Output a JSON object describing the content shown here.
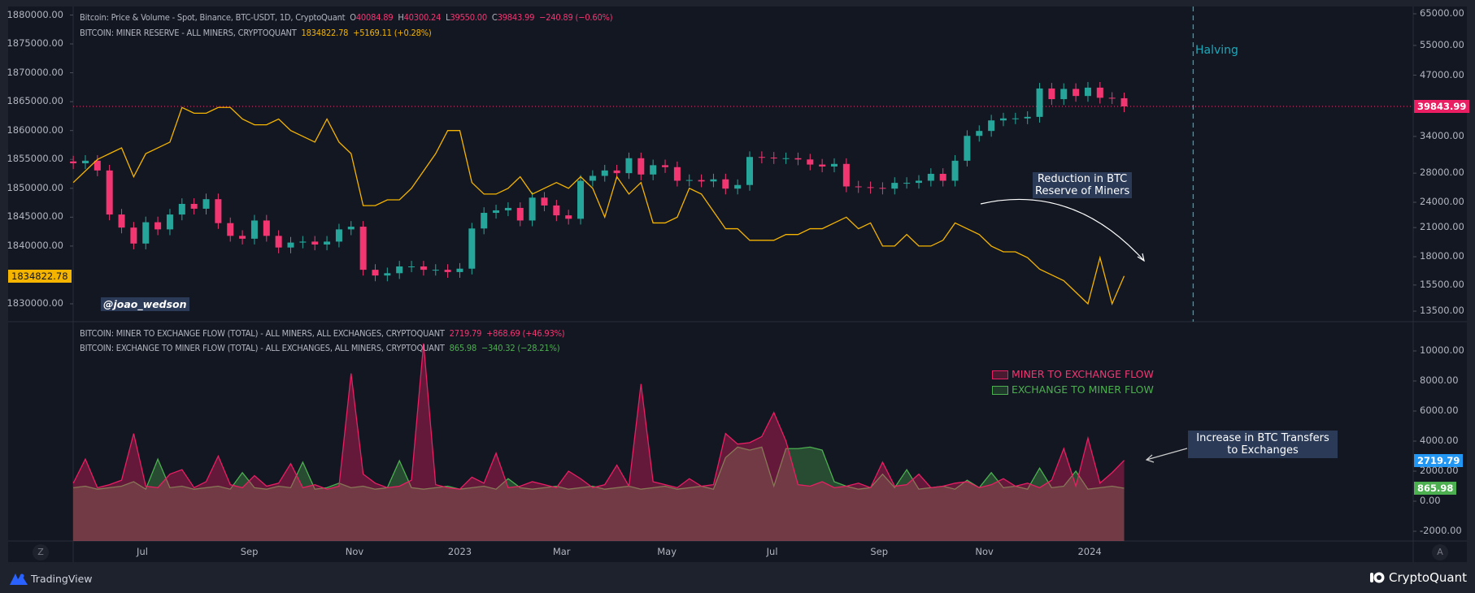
{
  "legend_top": {
    "price_title": "Bitcoin: Price & Volume - Spot, Binance, BTC-USDT, 1D, CryptoQuant",
    "o_label": "O",
    "o": "40084.89",
    "h_label": "H",
    "h": "40300.24",
    "l_label": "L",
    "l": "39550.00",
    "c_label": "C",
    "c": "39843.99",
    "change": "−240.89 (−0.60%)",
    "reserve_title": "BITCOIN: MINER RESERVE - ALL MINERS, CRYPTOQUANT",
    "reserve_value": "1834822.78",
    "reserve_change": "+5169.11 (+0.28%)"
  },
  "legend_bottom": {
    "m2e_title": "BITCOIN: MINER TO EXCHANGE FLOW (TOTAL) - ALL MINERS, ALL EXCHANGES, CRYPTOQUANT",
    "m2e_value": "2719.79",
    "m2e_change": "+868.69 (+46.93%)",
    "e2m_title": "BITCOIN: EXCHANGE TO MINER FLOW (TOTAL) - ALL EXCHANGES, ALL MINERS, CRYPTOQUANT",
    "e2m_value": "865.98",
    "e2m_change": "−340.32 (−28.21%)"
  },
  "annotations": {
    "halving": "Halving",
    "reduction": [
      "Reduction in BTC",
      "Reserve of Miners"
    ],
    "increase": [
      "Increase in BTC Transfers",
      "to Exchanges"
    ],
    "watermark": "@joao_wedson",
    "legend_m2e": "MINER TO EXCHANGE FLOW",
    "legend_e2m": "EXCHANGE TO MINER FLOW"
  },
  "last_values": {
    "price": "39843.99",
    "reserve": "1834822.78",
    "m2e": "2719.79",
    "e2m": "865.98"
  },
  "axes": {
    "left_ticks": [
      "1880000.00",
      "1875000.00",
      "1870000.00",
      "1865000.00",
      "1860000.00",
      "1855000.00",
      "1850000.00",
      "1845000.00",
      "1840000.00",
      "1830000.00"
    ],
    "right_top_ticks": [
      "65000.00",
      "55000.00",
      "47000.00",
      "34000.00",
      "28000.00",
      "24000.00",
      "21000.00",
      "18000.00",
      "15500.00",
      "13500.00"
    ],
    "right_bottom_ticks": [
      "10000.00",
      "8000.00",
      "6000.00",
      "4000.00",
      "2000.00",
      "0.00",
      "-2000.00"
    ],
    "time_ticks": [
      {
        "label": "Jul",
        "date": "2022-07-01"
      },
      {
        "label": "Sep",
        "date": "2022-09-01"
      },
      {
        "label": "Nov",
        "date": "2022-11-01"
      },
      {
        "label": "2023",
        "date": "2023-01-01"
      },
      {
        "label": "Mar",
        "date": "2023-03-01"
      },
      {
        "label": "May",
        "date": "2023-05-01"
      },
      {
        "label": "Jul",
        "date": "2023-07-01"
      },
      {
        "label": "Sep",
        "date": "2023-09-01"
      },
      {
        "label": "Nov",
        "date": "2023-11-01"
      },
      {
        "label": "2024",
        "date": "2024-01-01"
      }
    ],
    "z_button": "Z",
    "a_button": "A"
  },
  "footer": {
    "left_brand": "TradingView",
    "right_brand": "CryptoQuant"
  },
  "colors": {
    "up": "#26a69a",
    "down": "#f23672",
    "reserve": "#f5b400",
    "m2e": "#e91e63",
    "e2m": "#4caf50",
    "halving": "#1fa7b8",
    "price_tag": "#e91e63",
    "m2e_tag": "#2196f3",
    "e2m_tag": "#4caf50"
  },
  "chart_data": {
    "type": "candlestick+line+area",
    "sampling": "weekly",
    "start_date": "2022-05-22",
    "halving_date": "2024-03-01",
    "price_scale": "log",
    "price_close": [
      29500,
      29900,
      28400,
      22500,
      21000,
      19300,
      21600,
      20800,
      22500,
      23800,
      23200,
      24400,
      21500,
      20100,
      19800,
      21800,
      20100,
      18900,
      19400,
      19500,
      19200,
      19500,
      20800,
      21100,
      16800,
      16300,
      16500,
      17100,
      17100,
      16800,
      16800,
      16600,
      16900,
      20900,
      22700,
      23000,
      23300,
      21800,
      24600,
      23600,
      22400,
      22000,
      26900,
      27600,
      28400,
      28000,
      30300,
      27800,
      29200,
      28900,
      26900,
      27000,
      26800,
      27100,
      25800,
      26300,
      30500,
      30400,
      30300,
      30300,
      30100,
      29300,
      29000,
      29400,
      26100,
      26000,
      25900,
      25800,
      26600,
      26600,
      26900,
      27900,
      26900,
      29900,
      34100,
      35000,
      37000,
      37400,
      37400,
      37700,
      43800,
      41400,
      43700,
      42100,
      44000,
      41700,
      41600,
      39843.99
    ],
    "miner_reserve": [
      1851000,
      1853000,
      1855000,
      1856000,
      1857000,
      1852000,
      1856000,
      1857000,
      1858000,
      1864000,
      1863000,
      1863000,
      1864000,
      1864000,
      1862000,
      1861000,
      1861000,
      1862000,
      1860000,
      1859000,
      1858000,
      1862000,
      1858000,
      1856000,
      1847000,
      1847000,
      1848000,
      1848000,
      1850000,
      1853000,
      1856000,
      1860000,
      1860000,
      1851000,
      1849000,
      1849000,
      1850000,
      1852000,
      1849000,
      1850000,
      1851000,
      1850000,
      1852000,
      1850000,
      1845000,
      1852000,
      1849000,
      1851000,
      1844000,
      1844000,
      1845000,
      1850000,
      1849000,
      1846000,
      1843000,
      1843000,
      1841000,
      1841000,
      1841000,
      1842000,
      1842000,
      1843000,
      1843000,
      1844000,
      1845000,
      1843000,
      1844000,
      1840000,
      1840000,
      1842000,
      1840000,
      1840000,
      1841000,
      1844000,
      1843000,
      1842000,
      1840000,
      1839000,
      1839000,
      1838000,
      1836000,
      1835000,
      1834000,
      1832000,
      1830000,
      1838000,
      1830000,
      1834822.78
    ],
    "miner_to_exchange_flow": [
      1200,
      2800,
      900,
      1100,
      1400,
      4500,
      1000,
      900,
      1800,
      2100,
      900,
      1300,
      3000,
      1100,
      900,
      1700,
      1000,
      1200,
      2500,
      900,
      1100,
      800,
      1000,
      8500,
      1800,
      1200,
      900,
      1000,
      1400,
      10500,
      1100,
      900,
      800,
      1600,
      1200,
      3200,
      900,
      1000,
      1300,
      1100,
      900,
      2000,
      1500,
      900,
      1100,
      2400,
      1000,
      7800,
      1300,
      1100,
      900,
      1500,
      1000,
      1100,
      4500,
      3800,
      3900,
      4300,
      5900,
      4000,
      1100,
      1000,
      1300,
      900,
      1000,
      1200,
      900,
      2600,
      1000,
      1100,
      1800,
      900,
      1000,
      1200,
      1300,
      900,
      1100,
      1500,
      1000,
      1200,
      900,
      1400,
      3500,
      1000,
      4200,
      1200,
      1900,
      2719.79
    ],
    "exchange_to_miner_flow": [
      900,
      1000,
      800,
      900,
      1000,
      1300,
      800,
      2800,
      900,
      1000,
      800,
      900,
      1000,
      800,
      1900,
      900,
      800,
      1000,
      900,
      2600,
      800,
      900,
      1200,
      900,
      1000,
      800,
      900,
      2700,
      900,
      800,
      900,
      1000,
      800,
      900,
      1000,
      800,
      1500,
      900,
      800,
      900,
      1000,
      800,
      900,
      1000,
      800,
      900,
      1000,
      800,
      900,
      1000,
      800,
      900,
      1000,
      800,
      2900,
      3600,
      3400,
      3600,
      1000,
      3500,
      3500,
      3600,
      3400,
      1300,
      1000,
      800,
      900,
      1800,
      900,
      2100,
      800,
      900,
      1000,
      800,
      1400,
      900,
      1900,
      900,
      1000,
      800,
      2200,
      900,
      1000,
      2000,
      800,
      900,
      1000,
      865.98
    ]
  }
}
